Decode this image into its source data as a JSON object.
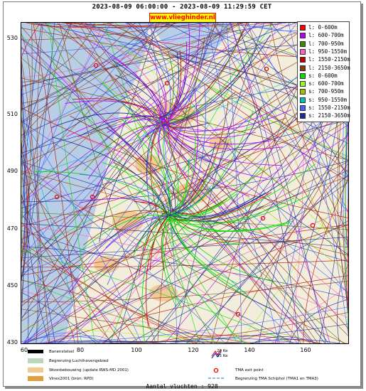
{
  "header": {
    "title": "2023-08-09 06:00:00 - 2023-08-09 11:29:59 CET",
    "website": "www.vlieghinder.nl"
  },
  "axes": {
    "y_ticks": [
      "530",
      "510",
      "490",
      "470",
      "450",
      "430"
    ],
    "x_ticks": [
      "60",
      "80",
      "100",
      "120",
      "140",
      "160"
    ]
  },
  "legend": [
    {
      "label": "l: 0-600m",
      "color": "#ff0000"
    },
    {
      "label": "l: 600-700m",
      "color": "#b000ff"
    },
    {
      "label": "l: 700-950m",
      "color": "#3a8a00"
    },
    {
      "label": "l: 950-1550m",
      "color": "#ff60c0"
    },
    {
      "label": "l: 1550-2150m",
      "color": "#c00000"
    },
    {
      "label": "l: 2150-3650m",
      "color": "#8b3a10"
    },
    {
      "label": "s: 0-600m",
      "color": "#00e000"
    },
    {
      "label": "s: 600-700m",
      "color": "#90ff20"
    },
    {
      "label": "s: 700-950m",
      "color": "#a0c000"
    },
    {
      "label": "s: 950-1550m",
      "color": "#00c0c0"
    },
    {
      "label": "s: 1550-2150m",
      "color": "#4060ff"
    },
    {
      "label": "s: 2150-3650m",
      "color": "#1a2a9a"
    }
  ],
  "map_legend": {
    "runway": "Banenstelsel",
    "airport_boundary": "Begrenzing Luchthavengebied",
    "residential": "Woonbebouwing (update RWS-MD 2001)",
    "vinex": "Vinex2001 (bron: RPD)",
    "ke20": "20 Ke",
    "ke35": "35 Ke",
    "tma_exit": "TMA exit point",
    "tma_boundary": "Begrenzing TMA Schiphol  (TMA1 en TMA3)"
  },
  "footer": {
    "count_label": "Aantal vluchten : 928"
  },
  "colors": {
    "sea": "#b8cde6",
    "land": "#f2eedb",
    "urban": "#f0c890"
  }
}
